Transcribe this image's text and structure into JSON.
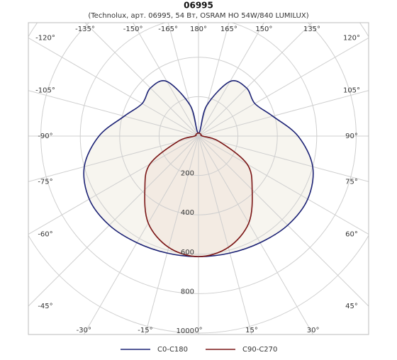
{
  "chart_data": {
    "type": "polar",
    "title": "06995",
    "subtitle": "(Technolux, арт. 06995, 54 Вт, OSRAM HO 54W/840 LUMILUX)",
    "angles": [
      -180,
      -165,
      -150,
      -135,
      -120,
      -105,
      -90,
      -75,
      -60,
      -45,
      -30,
      -15,
      0,
      15,
      30,
      45,
      60,
      75,
      90,
      105,
      120,
      135,
      150,
      165,
      180
    ],
    "rlim": [
      0,
      1000
    ],
    "rticks": [
      200,
      400,
      600,
      800,
      1000
    ],
    "angle_ticks": [
      {
        "value": -135,
        "label": "-135°"
      },
      {
        "value": -150,
        "label": "-150°"
      },
      {
        "value": -165,
        "label": "-165°"
      },
      {
        "value": 180,
        "label": "180°"
      },
      {
        "value": 165,
        "label": "165°"
      },
      {
        "value": 150,
        "label": "150°"
      },
      {
        "value": 135,
        "label": "135°"
      },
      {
        "value": -120,
        "label": "-120°"
      },
      {
        "value": 120,
        "label": "120°"
      },
      {
        "value": -105,
        "label": "-105°"
      },
      {
        "value": 105,
        "label": "105°"
      },
      {
        "value": -90,
        "label": "-90°"
      },
      {
        "value": 90,
        "label": "90°"
      },
      {
        "value": -75,
        "label": "-75°"
      },
      {
        "value": 75,
        "label": "75°"
      },
      {
        "value": -60,
        "label": "-60°"
      },
      {
        "value": 60,
        "label": "60°"
      },
      {
        "value": -45,
        "label": "-45°"
      },
      {
        "value": 45,
        "label": "45°"
      },
      {
        "value": -30,
        "label": "-30°"
      },
      {
        "value": -15,
        "label": "-15°"
      },
      {
        "value": 0,
        "label": "0°"
      },
      {
        "value": 15,
        "label": "15°"
      },
      {
        "value": 30,
        "label": "30°"
      }
    ],
    "series": [
      {
        "name": "C0-C180",
        "color": "#1c2275",
        "fill": "#f7f5ef",
        "values": [
          15,
          160,
          320,
          345,
          330,
          390,
          505,
          600,
          640,
          640,
          625,
          615,
          612,
          615,
          625,
          640,
          640,
          600,
          505,
          390,
          330,
          345,
          320,
          160,
          15
        ]
      },
      {
        "name": "C90-C270",
        "color": "#7a1515",
        "fill": "#f3ebe3",
        "values": [
          15,
          15,
          15,
          15,
          15,
          15,
          20,
          110,
          285,
          385,
          510,
          585,
          612,
          585,
          510,
          385,
          285,
          110,
          20,
          15,
          15,
          15,
          15,
          15,
          15
        ]
      }
    ]
  }
}
